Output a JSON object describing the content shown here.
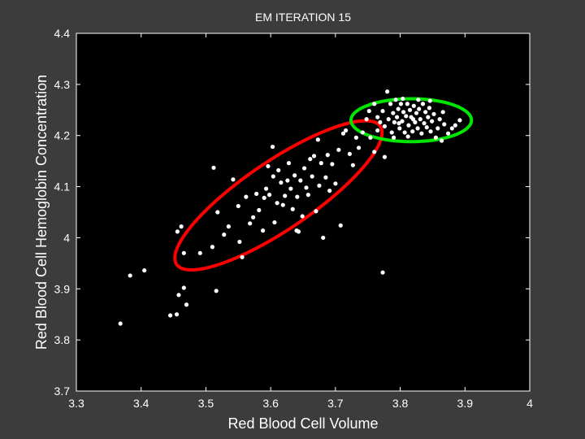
{
  "chart_data": {
    "type": "scatter",
    "title": "EM ITERATION 15",
    "xlabel": "Red Blood Cell Volume",
    "ylabel": "Red Blood Cell Hemoglobin Concentration",
    "xlim": [
      3.3,
      4.0
    ],
    "ylim": [
      3.7,
      4.4
    ],
    "xticks": [
      3.3,
      3.4,
      3.5,
      3.6,
      3.7,
      3.8,
      3.9,
      4
    ],
    "yticks": [
      3.7,
      3.8,
      3.9,
      4,
      4.1,
      4.2,
      4.3,
      4.4
    ],
    "xtick_labels": [
      "3.3",
      "3.4",
      "3.5",
      "3.6",
      "3.7",
      "3.8",
      "3.9",
      "4"
    ],
    "ytick_labels": [
      "3.7",
      "3.8",
      "3.9",
      "4",
      "4.1",
      "4.2",
      "4.3",
      "4.4"
    ],
    "grid": false,
    "colors": {
      "figure_background": "#3c3c3c",
      "plot_background": "#000000",
      "axes": "#ffffff",
      "points": "#ffffff",
      "component_1": "#ff0000",
      "component_2": "#00e600"
    },
    "points": [
      [
        3.368,
        3.832
      ],
      [
        3.383,
        3.926
      ],
      [
        3.405,
        3.936
      ],
      [
        3.445,
        3.848
      ],
      [
        3.455,
        3.85
      ],
      [
        3.458,
        3.888
      ],
      [
        3.466,
        3.902
      ],
      [
        3.47,
        3.869
      ],
      [
        3.456,
        4.012
      ],
      [
        3.462,
        4.022
      ],
      [
        3.466,
        3.97
      ],
      [
        3.491,
        3.97
      ],
      [
        3.512,
        4.137
      ],
      [
        3.51,
        3.982
      ],
      [
        3.518,
        4.05
      ],
      [
        3.516,
        3.896
      ],
      [
        3.528,
        4.006
      ],
      [
        3.535,
        4.022
      ],
      [
        3.542,
        4.114
      ],
      [
        3.55,
        4.062
      ],
      [
        3.552,
        3.992
      ],
      [
        3.556,
        3.962
      ],
      [
        3.562,
        4.08
      ],
      [
        3.568,
        4.028
      ],
      [
        3.573,
        4.04
      ],
      [
        3.578,
        4.086
      ],
      [
        3.582,
        4.054
      ],
      [
        3.588,
        4.014
      ],
      [
        3.59,
        4.078
      ],
      [
        3.593,
        4.096
      ],
      [
        3.596,
        4.14
      ],
      [
        3.598,
        4.084
      ],
      [
        3.603,
        4.178
      ],
      [
        3.604,
        4.12
      ],
      [
        3.606,
        4.03
      ],
      [
        3.61,
        4.068
      ],
      [
        3.612,
        4.132
      ],
      [
        3.616,
        4.108
      ],
      [
        3.619,
        4.064
      ],
      [
        3.622,
        4.082
      ],
      [
        3.626,
        4.112
      ],
      [
        3.628,
        4.146
      ],
      [
        3.631,
        4.096
      ],
      [
        3.634,
        4.056
      ],
      [
        3.637,
        4.122
      ],
      [
        3.64,
        4.014
      ],
      [
        3.641,
        4.08
      ],
      [
        3.643,
        4.012
      ],
      [
        3.646,
        4.112
      ],
      [
        3.649,
        4.042
      ],
      [
        3.652,
        4.136
      ],
      [
        3.655,
        4.098
      ],
      [
        3.658,
        4.084
      ],
      [
        3.661,
        4.154
      ],
      [
        3.664,
        4.12
      ],
      [
        3.667,
        4.16
      ],
      [
        3.67,
        4.052
      ],
      [
        3.673,
        4.192
      ],
      [
        3.675,
        4.102
      ],
      [
        3.678,
        4.146
      ],
      [
        3.681,
        4.0
      ],
      [
        3.685,
        4.118
      ],
      [
        3.688,
        4.162
      ],
      [
        3.691,
        4.092
      ],
      [
        3.695,
        4.144
      ],
      [
        3.7,
        4.106
      ],
      [
        3.705,
        4.172
      ],
      [
        3.708,
        4.024
      ],
      [
        3.712,
        4.204
      ],
      [
        3.716,
        4.21
      ],
      [
        3.722,
        4.164
      ],
      [
        3.727,
        4.142
      ],
      [
        3.732,
        4.196
      ],
      [
        3.736,
        4.176
      ],
      [
        3.742,
        4.206
      ],
      [
        3.748,
        4.232
      ],
      [
        3.754,
        4.196
      ],
      [
        3.76,
        4.168
      ],
      [
        3.765,
        4.21
      ],
      [
        3.773,
        3.932
      ],
      [
        3.776,
        4.158
      ],
      [
        3.752,
        4.248
      ],
      [
        3.76,
        4.262
      ],
      [
        3.765,
        4.236
      ],
      [
        3.769,
        4.226
      ],
      [
        3.773,
        4.248
      ],
      [
        3.776,
        4.218
      ],
      [
        3.78,
        4.286
      ],
      [
        3.782,
        4.232
      ],
      [
        3.785,
        4.262
      ],
      [
        3.787,
        4.206
      ],
      [
        3.789,
        4.244
      ],
      [
        3.791,
        4.226
      ],
      [
        3.793,
        4.27
      ],
      [
        3.795,
        4.236
      ],
      [
        3.797,
        4.252
      ],
      [
        3.799,
        4.214
      ],
      [
        3.801,
        4.262
      ],
      [
        3.803,
        4.228
      ],
      [
        3.805,
        4.246
      ],
      [
        3.807,
        4.206
      ],
      [
        3.809,
        4.238
      ],
      [
        3.811,
        4.262
      ],
      [
        3.813,
        4.22
      ],
      [
        3.815,
        4.25
      ],
      [
        3.817,
        4.236
      ],
      [
        3.819,
        4.208
      ],
      [
        3.821,
        4.258
      ],
      [
        3.823,
        4.226
      ],
      [
        3.825,
        4.244
      ],
      [
        3.827,
        4.214
      ],
      [
        3.829,
        4.252
      ],
      [
        3.831,
        4.232
      ],
      [
        3.833,
        4.204
      ],
      [
        3.835,
        4.262
      ],
      [
        3.837,
        4.224
      ],
      [
        3.839,
        4.246
      ],
      [
        3.841,
        4.216
      ],
      [
        3.843,
        4.236
      ],
      [
        3.845,
        4.254
      ],
      [
        3.847,
        4.208
      ],
      [
        3.849,
        4.228
      ],
      [
        3.852,
        4.242
      ],
      [
        3.855,
        4.196
      ],
      [
        3.858,
        4.214
      ],
      [
        3.861,
        4.232
      ],
      [
        3.864,
        4.19
      ],
      [
        3.868,
        4.222
      ],
      [
        3.874,
        4.204
      ],
      [
        3.88,
        4.214
      ],
      [
        3.885,
        4.22
      ],
      [
        3.892,
        4.23
      ],
      [
        3.866,
        4.246
      ],
      [
        3.804,
        4.272
      ],
      [
        3.79,
        4.196
      ],
      [
        3.812,
        4.198
      ],
      [
        3.828,
        4.27
      ],
      [
        3.846,
        4.268
      ],
      [
        3.798,
        4.224
      ],
      [
        3.82,
        4.232
      ]
    ],
    "components": [
      {
        "color": "#ff0000",
        "mean": [
          3.612,
          4.083
        ],
        "sx": 0.16,
        "sy": 0.146,
        "rho": 0.84
      },
      {
        "color": "#00e600",
        "mean": [
          3.817,
          4.23
        ],
        "sx": 0.093,
        "sy": 0.042,
        "rho": 0.0
      }
    ]
  }
}
